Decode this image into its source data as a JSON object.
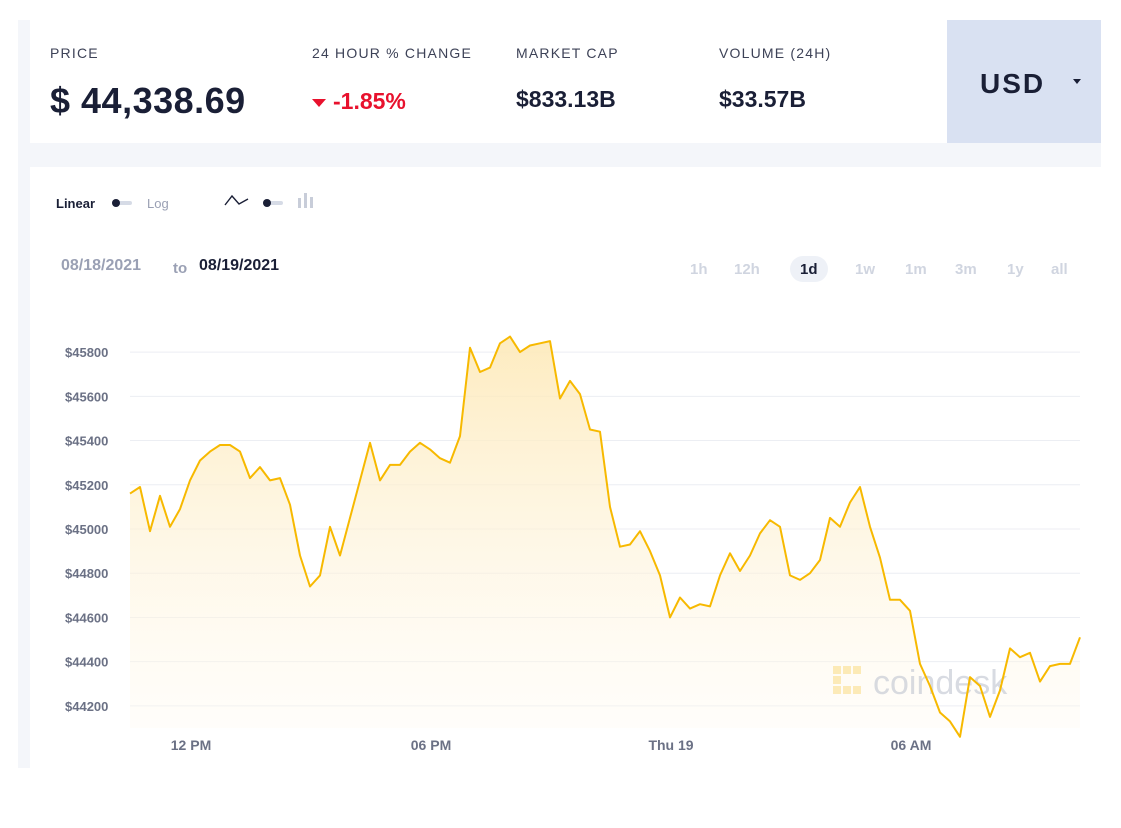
{
  "header": {
    "price_label": "PRICE",
    "price_value": "$ 44,338.69",
    "change_label": "24 HOUR % CHANGE",
    "change_value": "-1.85%",
    "market_cap_label": "MARKET CAP",
    "market_cap_value": "$833.13B",
    "volume_label": "VOLUME (24H)",
    "volume_value": "$33.57B",
    "currency": "USD",
    "accent_down": "#e8112d"
  },
  "controls": {
    "scale_linear": "Linear",
    "scale_log": "Log",
    "icons": [
      "line-chart-icon",
      "toggle-switch",
      "candlestick-icon"
    ],
    "date_from": "08/18/2021",
    "date_to_word": "to",
    "date_to": "08/19/2021",
    "ranges": [
      "1h",
      "12h",
      "1d",
      "1w",
      "1m",
      "3m",
      "1y",
      "all"
    ],
    "active_range": "1d"
  },
  "watermark": "coindesk",
  "chart_data": {
    "type": "area",
    "x_ticks": [
      "12 PM",
      "06 PM",
      "Thu 19",
      "06 AM"
    ],
    "y_ticks": [
      "$44200",
      "$44400",
      "$44600",
      "$44800",
      "$45000",
      "$45200",
      "$45400",
      "$45600",
      "$45800"
    ],
    "ylim": [
      44100,
      45900
    ],
    "grid": "horizontal",
    "line_color": "#f7b900",
    "series": [
      {
        "values": [
          45160,
          45190,
          44990,
          45150,
          45010,
          45090,
          45220,
          45310,
          45350,
          45380,
          45380,
          45350,
          45230,
          45280,
          45220,
          45230,
          45110,
          44880,
          44740,
          44790,
          45010,
          44880,
          45050,
          45220,
          45390,
          45220,
          45290,
          45290,
          45350,
          45390,
          45360,
          45320,
          45300,
          45420,
          45820,
          45710,
          45730,
          45840,
          45870,
          45800,
          45830,
          45840,
          45850,
          45590,
          45670,
          45610,
          45450,
          45440,
          45100,
          44920,
          44930,
          44990,
          44900,
          44790,
          44600,
          44690,
          44640,
          44660,
          44650,
          44790,
          44890,
          44810,
          44880,
          44980,
          45040,
          45010,
          44790,
          44770,
          44800,
          44860,
          45050,
          45010,
          45120,
          45190,
          45010,
          44870,
          44680,
          44680,
          44630,
          44390,
          44290,
          44170,
          44130,
          44060,
          44330,
          44290,
          44150,
          44270,
          44460,
          44420,
          44440,
          44310,
          44380,
          44390,
          44390,
          44510
        ]
      }
    ]
  }
}
